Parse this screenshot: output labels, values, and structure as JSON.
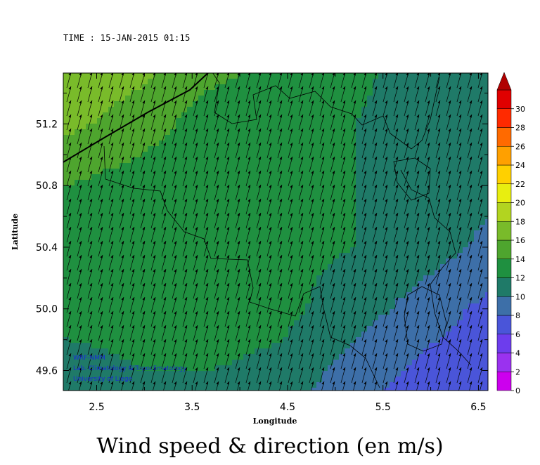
{
  "time_label": "TIME : 15-JAN-2015 01:15",
  "title": "Wind speed & direction (en m/s)",
  "chart_data": {
    "type": "heatmap",
    "xlabel": "Longitude",
    "ylabel": "Latitude",
    "xlim": [
      2.15,
      6.6
    ],
    "ylim": [
      49.47,
      51.53
    ],
    "xticks": [
      "2.5",
      "3.5",
      "4.5",
      "5.5",
      "6.5"
    ],
    "xtick_values": [
      2.5,
      3.5,
      4.5,
      5.5,
      6.5
    ],
    "yticks": [
      "49.6",
      "50.0",
      "50.4",
      "50.8",
      "51.2"
    ],
    "ytick_values": [
      49.6,
      50.0,
      50.4,
      50.8,
      51.2
    ],
    "colorbar": {
      "labels": [
        "0",
        "2",
        "4",
        "6",
        "8",
        "10",
        "12",
        "14",
        "16",
        "18",
        "20",
        "22",
        "24",
        "26",
        "28",
        "30"
      ],
      "levels": [
        0,
        2,
        4,
        6,
        8,
        10,
        12,
        14,
        16,
        18,
        20,
        22,
        24,
        26,
        28,
        30
      ],
      "colors": [
        "#cc00ee",
        "#9a32ef",
        "#6d3ded",
        "#4a55d9",
        "#3d6fa8",
        "#1f7a68",
        "#1f9040",
        "#4ea52e",
        "#79bb2a",
        "#b2d420",
        "#e8ee10",
        "#ffd000",
        "#ffa000",
        "#ff6a00",
        "#ff2a00",
        "#e00000"
      ],
      "top_color": "#b00000"
    },
    "field": {
      "lons": [
        2.2,
        2.95,
        3.7,
        4.45,
        5.2,
        5.95,
        6.6
      ],
      "lats": [
        51.55,
        51.2,
        50.8,
        50.4,
        50.0,
        49.6,
        49.45
      ],
      "speed": [
        [
          17.5,
          16.5,
          14.5,
          13.5,
          12.5,
          11.0,
          10.0
        ],
        [
          16.5,
          15.0,
          13.0,
          12.5,
          12.0,
          11.0,
          10.0
        ],
        [
          14.0,
          13.0,
          12.5,
          12.0,
          12.0,
          11.5,
          10.5
        ],
        [
          13.0,
          12.5,
          12.0,
          12.5,
          12.0,
          11.0,
          9.5
        ],
        [
          12.5,
          12.5,
          13.0,
          12.5,
          11.0,
          9.0,
          7.5
        ],
        [
          11.5,
          12.0,
          12.0,
          11.5,
          9.0,
          7.5,
          6.5
        ],
        [
          11.0,
          11.5,
          11.5,
          11.0,
          8.5,
          7.0,
          6.0
        ]
      ]
    },
    "wind_direction": "from south-southwest (arrows point north-northeast)",
    "credits": [
      "WRF-NMM",
      "Lab. Climatology & Topoclimatology",
      "University of Liege"
    ]
  }
}
